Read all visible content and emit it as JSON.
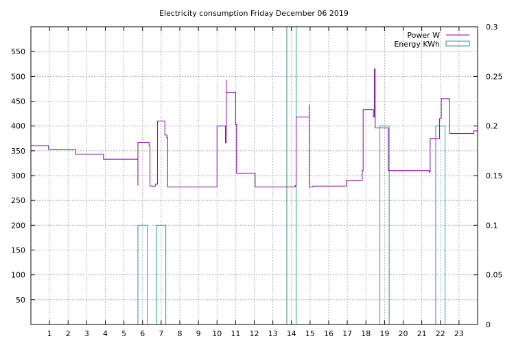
{
  "chart_data": {
    "type": "line",
    "title": "Electricity consumption Friday December 06 2019",
    "xlabel": "",
    "ylabel": "",
    "xlim": [
      0,
      24
    ],
    "ylim": [
      0,
      600
    ],
    "y2lim": [
      0,
      0.3
    ],
    "grid": true,
    "legend_position": "top-right",
    "x_ticks": [
      "1",
      "2",
      "3",
      "4",
      "5",
      "6",
      "7",
      "8",
      "9",
      "10",
      "11",
      "12",
      "13",
      "14",
      "15",
      "16",
      "17",
      "18",
      "19",
      "20",
      "21",
      "22",
      "23"
    ],
    "y_ticks": [
      "50",
      "100",
      "150",
      "200",
      "250",
      "300",
      "350",
      "400",
      "450",
      "500",
      "550"
    ],
    "y2_ticks": [
      "0",
      "0.05",
      "0.1",
      "0.15",
      "0.2",
      "0.25",
      "0.3"
    ],
    "series": [
      {
        "name": "Power W",
        "color": "#8b00a8",
        "axis": "left",
        "style": "step",
        "points": [
          [
            0,
            360
          ],
          [
            0.95,
            360
          ],
          [
            0.95,
            353
          ],
          [
            2.4,
            353
          ],
          [
            2.4,
            343
          ],
          [
            3.9,
            343
          ],
          [
            3.9,
            333
          ],
          [
            5.75,
            333
          ],
          [
            5.75,
            280
          ],
          [
            5.75,
            367
          ],
          [
            6.35,
            367
          ],
          [
            6.35,
            360
          ],
          [
            6.4,
            360
          ],
          [
            6.4,
            279
          ],
          [
            6.7,
            279
          ],
          [
            6.7,
            283
          ],
          [
            6.8,
            283
          ],
          [
            6.8,
            410
          ],
          [
            7.2,
            410
          ],
          [
            7.2,
            382
          ],
          [
            7.3,
            382
          ],
          [
            7.3,
            377
          ],
          [
            7.35,
            377
          ],
          [
            7.35,
            277
          ],
          [
            10.0,
            277
          ],
          [
            10.0,
            400
          ],
          [
            10.45,
            400
          ],
          [
            10.45,
            366
          ],
          [
            10.5,
            366
          ],
          [
            10.5,
            493
          ],
          [
            10.5,
            468
          ],
          [
            11.0,
            468
          ],
          [
            11.0,
            403
          ],
          [
            11.05,
            403
          ],
          [
            11.05,
            305
          ],
          [
            12.05,
            305
          ],
          [
            12.05,
            277
          ],
          [
            14.2,
            277
          ],
          [
            14.2,
            280
          ],
          [
            14.25,
            280
          ],
          [
            14.25,
            418
          ],
          [
            14.95,
            418
          ],
          [
            14.95,
            443
          ],
          [
            14.95,
            277
          ],
          [
            15.15,
            277
          ],
          [
            15.15,
            279
          ],
          [
            16.95,
            279
          ],
          [
            16.95,
            290
          ],
          [
            17.8,
            290
          ],
          [
            17.8,
            310
          ],
          [
            17.85,
            310
          ],
          [
            17.85,
            433
          ],
          [
            18.4,
            433
          ],
          [
            18.4,
            418
          ],
          [
            18.45,
            418
          ],
          [
            18.45,
            515
          ],
          [
            18.5,
            515
          ],
          [
            18.5,
            470
          ],
          [
            18.5,
            396
          ],
          [
            19.2,
            396
          ],
          [
            19.2,
            310
          ],
          [
            21.4,
            310
          ],
          [
            21.4,
            307
          ],
          [
            21.45,
            307
          ],
          [
            21.45,
            375
          ],
          [
            21.95,
            375
          ],
          [
            21.95,
            415
          ],
          [
            22.05,
            415
          ],
          [
            22.05,
            455
          ],
          [
            22.5,
            455
          ],
          [
            22.5,
            385
          ],
          [
            23.8,
            385
          ],
          [
            23.8,
            390
          ],
          [
            24.0,
            390
          ]
        ]
      },
      {
        "name": "Energy KWh",
        "color": "#1f9b8a",
        "axis": "right",
        "style": "impulse",
        "bars": [
          {
            "x0": 5.75,
            "x1": 6.25,
            "value": 0.1
          },
          {
            "x0": 6.75,
            "x1": 7.25,
            "value": 0.1
          },
          {
            "x0": 13.75,
            "x1": 14.25,
            "value": 0.3
          },
          {
            "x0": 18.75,
            "x1": 19.25,
            "value": 0.2
          },
          {
            "x0": 21.75,
            "x1": 22.25,
            "value": 0.2
          }
        ]
      }
    ]
  }
}
